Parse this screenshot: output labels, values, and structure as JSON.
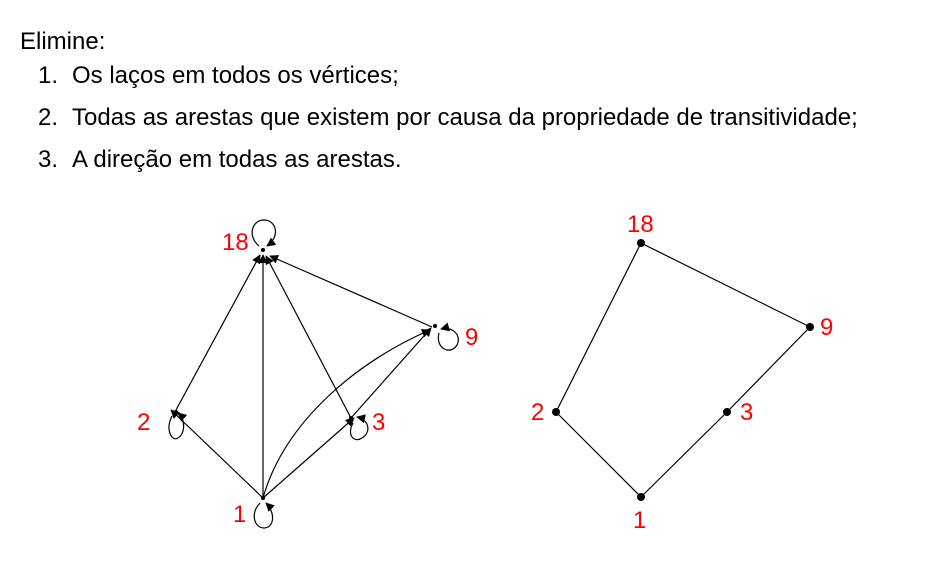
{
  "heading": "Elimine:",
  "steps": [
    {
      "num": "1.",
      "text": "Os laços em todos os vértices;"
    },
    {
      "num": "2.",
      "text": "Todas as arestas que existem por causa da propriedade de transitividade;"
    },
    {
      "num": "3.",
      "text": "A direção em todas as arestas."
    }
  ],
  "colors": {
    "label": "#ff0000",
    "edge": "#000000"
  },
  "left_graph": {
    "vertex_labels": {
      "v18": "18",
      "v9": "9",
      "v2": "2",
      "v3": "3",
      "v1": "1"
    },
    "edges": [
      [
        "1",
        "2"
      ],
      [
        "1",
        "18"
      ],
      [
        "1",
        "3"
      ],
      [
        "1",
        "9"
      ],
      [
        "2",
        "18"
      ],
      [
        "3",
        "18"
      ],
      [
        "3",
        "9"
      ],
      [
        "9",
        "18"
      ]
    ],
    "loops": [
      "18",
      "9",
      "2",
      "3",
      "1"
    ]
  },
  "right_graph": {
    "vertex_labels": {
      "v18": "18",
      "v9": "9",
      "v2": "2",
      "v3": "3",
      "v1": "1"
    },
    "edges": [
      [
        "18",
        "2"
      ],
      [
        "18",
        "9"
      ],
      [
        "9",
        "3"
      ],
      [
        "3",
        "1"
      ],
      [
        "2",
        "1"
      ]
    ]
  }
}
